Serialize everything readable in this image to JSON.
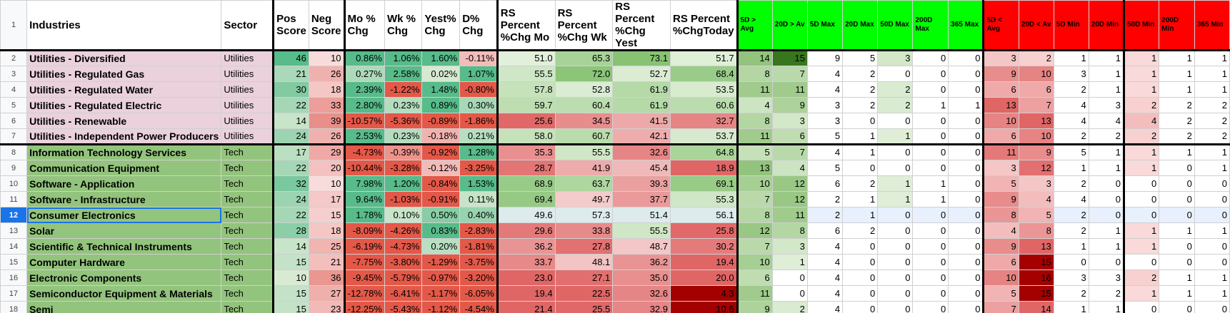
{
  "headers": {
    "row_number": "1",
    "industries": "Industries",
    "sector": "Sector",
    "pos_score": "Pos Score",
    "neg_score": "Neg Score",
    "mo_chg": "Mo % Chg",
    "wk_chg": "Wk % Chg",
    "yest_chg": "Yest% Chg",
    "d_chg": "D% Chg",
    "rs_mo": "RS Percent %Chg Mo",
    "rs_wk": "RS Percent %Chg Wk",
    "rs_yest": "RS Percent %Chg Yest",
    "rs_today": "RS Percent %ChgToday",
    "d5_gt_avg": "5D > Avg",
    "d20_gt_avg": "20D > Av",
    "d5_max": "5D Max",
    "d20_max": "20D Max",
    "d50_max": "50D Max",
    "d200_max": "200D Max",
    "d365_max": "365 Max",
    "d5_lt_avg": "5D < Avg",
    "d20_lt_avg": "20D < Av",
    "d5_min": "5D Min",
    "d20_min": "20D Min",
    "d50_min": "50D Min",
    "d200_min": "200D Min",
    "d365_min": "365 Min"
  },
  "colors": {
    "utilities_bg": "#ead1dc",
    "tech_bg": "#93c47d",
    "green_header": "#00ff00",
    "red_header": "#ff0000",
    "selection": "#1a73e8"
  },
  "selected_row": "12",
  "rows": [
    {
      "n": "2",
      "industry": "Utilities - Diversified",
      "sector": "Utilities",
      "pos": "46",
      "neg": "10",
      "mo": "0.86%",
      "wk": "1.06%",
      "yest": "1.60%",
      "d": "-0.11%",
      "rsmo": "51.0",
      "rswk": "65.3",
      "rsyest": "73.1",
      "rstoday": "51.7",
      "g5avg": "14",
      "g20avg": "15",
      "g5max": "9",
      "g20max": "5",
      "g50max": "3",
      "g200max": "0",
      "g365max": "0",
      "l5avg": "3",
      "l20avg": "2",
      "l5min": "1",
      "l20min": "1",
      "l50min": "1",
      "l200min": "1",
      "l365min": "1"
    },
    {
      "n": "3",
      "industry": "Utilities - Regulated Gas",
      "sector": "Utilities",
      "pos": "21",
      "neg": "26",
      "mo": "0.27%",
      "wk": "2.58%",
      "yest": "0.02%",
      "d": "1.07%",
      "rsmo": "55.5",
      "rswk": "72.0",
      "rsyest": "52.7",
      "rstoday": "68.4",
      "g5avg": "8",
      "g20avg": "7",
      "g5max": "4",
      "g20max": "2",
      "g50max": "0",
      "g200max": "0",
      "g365max": "0",
      "l5avg": "9",
      "l20avg": "10",
      "l5min": "3",
      "l20min": "1",
      "l50min": "1",
      "l200min": "1",
      "l365min": "1"
    },
    {
      "n": "4",
      "industry": "Utilities - Regulated Water",
      "sector": "Utilities",
      "pos": "30",
      "neg": "18",
      "mo": "2.39%",
      "wk": "-1.22%",
      "yest": "1.48%",
      "d": "-0.80%",
      "rsmo": "57.8",
      "rswk": "52.8",
      "rsyest": "61.9",
      "rstoday": "53.5",
      "g5avg": "11",
      "g20avg": "11",
      "g5max": "4",
      "g20max": "2",
      "g50max": "2",
      "g200max": "0",
      "g365max": "0",
      "l5avg": "6",
      "l20avg": "6",
      "l5min": "2",
      "l20min": "1",
      "l50min": "1",
      "l200min": "1",
      "l365min": "1"
    },
    {
      "n": "5",
      "industry": "Utilities - Regulated Electric",
      "sector": "Utilities",
      "pos": "22",
      "neg": "33",
      "mo": "2.80%",
      "wk": "0.23%",
      "yest": "0.89%",
      "d": "0.30%",
      "rsmo": "59.7",
      "rswk": "60.4",
      "rsyest": "61.9",
      "rstoday": "60.6",
      "g5avg": "4",
      "g20avg": "9",
      "g5max": "3",
      "g20max": "2",
      "g50max": "2",
      "g200max": "1",
      "g365max": "1",
      "l5avg": "13",
      "l20avg": "7",
      "l5min": "4",
      "l20min": "3",
      "l50min": "2",
      "l200min": "2",
      "l365min": "2"
    },
    {
      "n": "6",
      "industry": "Utilities - Renewable",
      "sector": "Utilities",
      "pos": "14",
      "neg": "39",
      "mo": "-10.57%",
      "wk": "-5.36%",
      "yest": "-0.89%",
      "d": "-1.86%",
      "rsmo": "25.6",
      "rswk": "34.5",
      "rsyest": "41.5",
      "rstoday": "32.7",
      "g5avg": "8",
      "g20avg": "3",
      "g5max": "3",
      "g20max": "0",
      "g50max": "0",
      "g200max": "0",
      "g365max": "0",
      "l5avg": "10",
      "l20avg": "13",
      "l5min": "4",
      "l20min": "4",
      "l50min": "4",
      "l200min": "2",
      "l365min": "2"
    },
    {
      "n": "7",
      "industry": "Utilities - Independent Power Producers",
      "sector": "Utilities",
      "pos": "24",
      "neg": "26",
      "mo": "2.53%",
      "wk": "0.23%",
      "yest": "-0.18%",
      "d": "0.21%",
      "rsmo": "58.0",
      "rswk": "60.7",
      "rsyest": "42.1",
      "rstoday": "53.7",
      "g5avg": "11",
      "g20avg": "6",
      "g5max": "5",
      "g20max": "1",
      "g50max": "1",
      "g200max": "0",
      "g365max": "0",
      "l5avg": "6",
      "l20avg": "10",
      "l5min": "2",
      "l20min": "2",
      "l50min": "2",
      "l200min": "2",
      "l365min": "2"
    },
    {
      "n": "8",
      "industry": "Information Technology Services",
      "sector": "Tech",
      "pos": "17",
      "neg": "29",
      "mo": "-4.73%",
      "wk": "-0.39%",
      "yest": "-0.92%",
      "d": "1.28%",
      "rsmo": "35.3",
      "rswk": "55.5",
      "rsyest": "32.6",
      "rstoday": "64.8",
      "g5avg": "5",
      "g20avg": "7",
      "g5max": "4",
      "g20max": "1",
      "g50max": "0",
      "g200max": "0",
      "g365max": "0",
      "l5avg": "11",
      "l20avg": "9",
      "l5min": "5",
      "l20min": "1",
      "l50min": "1",
      "l200min": "1",
      "l365min": "1"
    },
    {
      "n": "9",
      "industry": "Communication Equipment",
      "sector": "Tech",
      "pos": "22",
      "neg": "20",
      "mo": "-10.44%",
      "wk": "-3.28%",
      "yest": "-0.12%",
      "d": "-3.25%",
      "rsmo": "28.7",
      "rswk": "41.9",
      "rsyest": "45.4",
      "rstoday": "18.9",
      "g5avg": "13",
      "g20avg": "4",
      "g5max": "5",
      "g20max": "0",
      "g50max": "0",
      "g200max": "0",
      "g365max": "0",
      "l5avg": "3",
      "l20avg": "12",
      "l5min": "1",
      "l20min": "1",
      "l50min": "1",
      "l200min": "0",
      "l365min": "1"
    },
    {
      "n": "10",
      "industry": "Software - Application",
      "sector": "Tech",
      "pos": "32",
      "neg": "10",
      "mo": "7.98%",
      "wk": "1.20%",
      "yest": "-0.84%",
      "d": "1.53%",
      "rsmo": "68.9",
      "rswk": "63.7",
      "rsyest": "39.3",
      "rstoday": "69.1",
      "g5avg": "10",
      "g20avg": "12",
      "g5max": "6",
      "g20max": "2",
      "g50max": "1",
      "g200max": "1",
      "g365max": "0",
      "l5avg": "5",
      "l20avg": "3",
      "l5min": "2",
      "l20min": "0",
      "l50min": "0",
      "l200min": "0",
      "l365min": "0"
    },
    {
      "n": "11",
      "industry": "Software - Infrastructure",
      "sector": "Tech",
      "pos": "24",
      "neg": "17",
      "mo": "9.64%",
      "wk": "-1.03%",
      "yest": "-0.91%",
      "d": "0.11%",
      "rsmo": "69.4",
      "rswk": "49.7",
      "rsyest": "37.7",
      "rstoday": "55.3",
      "g5avg": "7",
      "g20avg": "12",
      "g5max": "2",
      "g20max": "1",
      "g50max": "1",
      "g200max": "1",
      "g365max": "0",
      "l5avg": "9",
      "l20avg": "4",
      "l5min": "4",
      "l20min": "0",
      "l50min": "0",
      "l200min": "0",
      "l365min": "0"
    },
    {
      "n": "12",
      "industry": "Consumer Electronics",
      "sector": "Tech",
      "pos": "22",
      "neg": "15",
      "mo": "1.78%",
      "wk": "0.10%",
      "yest": "0.50%",
      "d": "0.40%",
      "rsmo": "49.6",
      "rswk": "57.3",
      "rsyest": "51.4",
      "rstoday": "56.1",
      "g5avg": "8",
      "g20avg": "11",
      "g5max": "2",
      "g20max": "1",
      "g50max": "0",
      "g200max": "0",
      "g365max": "0",
      "l5avg": "8",
      "l20avg": "5",
      "l5min": "2",
      "l20min": "0",
      "l50min": "0",
      "l200min": "0",
      "l365min": "0"
    },
    {
      "n": "13",
      "industry": "Solar",
      "sector": "Tech",
      "pos": "28",
      "neg": "18",
      "mo": "-8.09%",
      "wk": "-4.26%",
      "yest": "0.83%",
      "d": "-2.83%",
      "rsmo": "29.6",
      "rswk": "33.8",
      "rsyest": "55.5",
      "rstoday": "25.8",
      "g5avg": "12",
      "g20avg": "8",
      "g5max": "6",
      "g20max": "2",
      "g50max": "0",
      "g200max": "0",
      "g365max": "0",
      "l5avg": "4",
      "l20avg": "8",
      "l5min": "2",
      "l20min": "1",
      "l50min": "1",
      "l200min": "1",
      "l365min": "1"
    },
    {
      "n": "14",
      "industry": "Scientific & Technical Instruments",
      "sector": "Tech",
      "pos": "14",
      "neg": "25",
      "mo": "-6.19%",
      "wk": "-4.73%",
      "yest": "0.20%",
      "d": "-1.81%",
      "rsmo": "36.2",
      "rswk": "27.8",
      "rsyest": "48.7",
      "rstoday": "30.2",
      "g5avg": "7",
      "g20avg": "3",
      "g5max": "4",
      "g20max": "0",
      "g50max": "0",
      "g200max": "0",
      "g365max": "0",
      "l5avg": "9",
      "l20avg": "13",
      "l5min": "1",
      "l20min": "1",
      "l50min": "1",
      "l200min": "0",
      "l365min": "0"
    },
    {
      "n": "15",
      "industry": "Computer Hardware",
      "sector": "Tech",
      "pos": "15",
      "neg": "21",
      "mo": "-7.75%",
      "wk": "-3.80%",
      "yest": "-1.29%",
      "d": "-3.75%",
      "rsmo": "33.7",
      "rswk": "48.1",
      "rsyest": "36.2",
      "rstoday": "19.4",
      "g5avg": "10",
      "g20avg": "1",
      "g5max": "4",
      "g20max": "0",
      "g50max": "0",
      "g200max": "0",
      "g365max": "0",
      "l5avg": "6",
      "l20avg": "15",
      "l5min": "0",
      "l20min": "0",
      "l50min": "0",
      "l200min": "0",
      "l365min": "0"
    },
    {
      "n": "16",
      "industry": "Electronic Components",
      "sector": "Tech",
      "pos": "10",
      "neg": "36",
      "mo": "-9.45%",
      "wk": "-5.79%",
      "yest": "-0.97%",
      "d": "-3.20%",
      "rsmo": "23.0",
      "rswk": "27.1",
      "rsyest": "35.0",
      "rstoday": "20.0",
      "g5avg": "6",
      "g20avg": "0",
      "g5max": "4",
      "g20max": "0",
      "g50max": "0",
      "g200max": "0",
      "g365max": "0",
      "l5avg": "10",
      "l20avg": "16",
      "l5min": "3",
      "l20min": "3",
      "l50min": "2",
      "l200min": "1",
      "l365min": "1"
    },
    {
      "n": "17",
      "industry": "Semiconductor Equipment & Materials",
      "sector": "Tech",
      "pos": "15",
      "neg": "27",
      "mo": "-12.78%",
      "wk": "-6.41%",
      "yest": "-1.17%",
      "d": "-6.05%",
      "rsmo": "19.4",
      "rswk": "22.5",
      "rsyest": "32.6",
      "rstoday": "4.3",
      "g5avg": "11",
      "g20avg": "0",
      "g5max": "4",
      "g20max": "0",
      "g50max": "0",
      "g200max": "0",
      "g365max": "0",
      "l5avg": "5",
      "l20avg": "15",
      "l5min": "2",
      "l20min": "2",
      "l50min": "1",
      "l200min": "1",
      "l365min": "1"
    },
    {
      "n": "18",
      "industry": "Semi",
      "sector": "Tech",
      "pos": "15",
      "neg": "23",
      "mo": "-12.25%",
      "wk": "-5.43%",
      "yest": "-1.12%",
      "d": "-4.54%",
      "rsmo": "21.4",
      "rswk": "25.5",
      "rsyest": "32.9",
      "rstoday": "10.6",
      "g5avg": "9",
      "g20avg": "2",
      "g5max": "4",
      "g20max": "0",
      "g50max": "0",
      "g200max": "0",
      "g365max": "0",
      "l5avg": "7",
      "l20avg": "14",
      "l5min": "1",
      "l20min": "1",
      "l50min": "0",
      "l200min": "0",
      "l365min": "0"
    }
  ]
}
